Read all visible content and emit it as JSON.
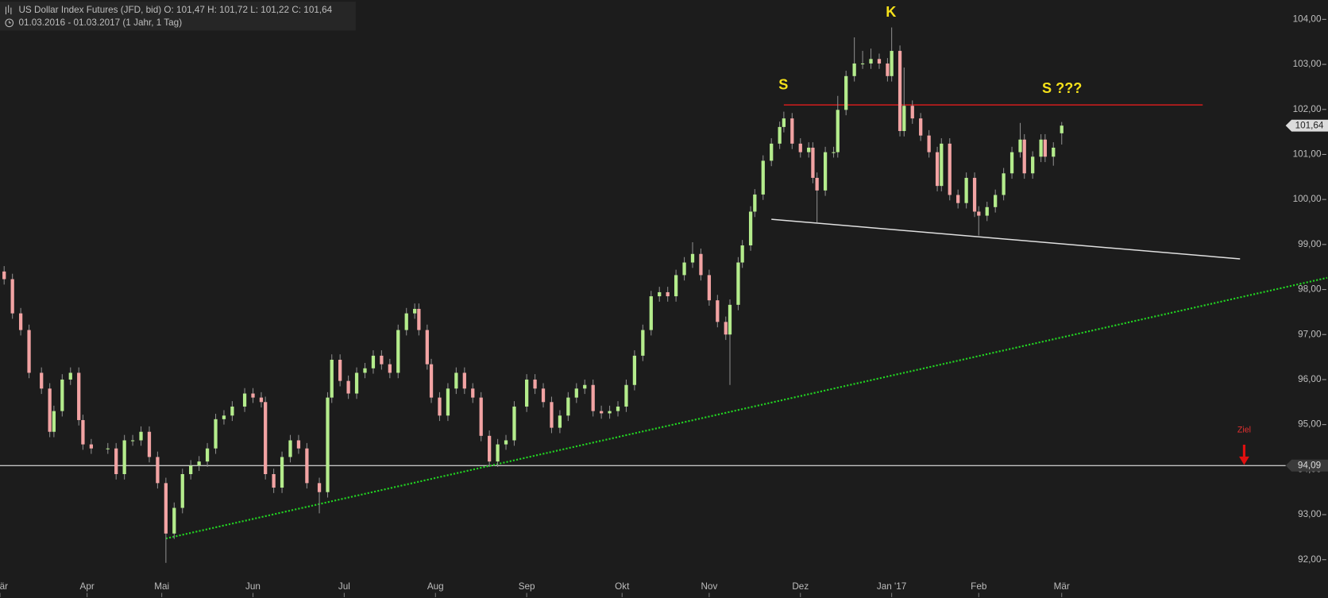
{
  "chart_data": {
    "type": "candlestick",
    "title": "US Dollar Index Futures (JFD, bid)  O: 101,47  H: 101,72  L: 101,22  C: 101,64",
    "subtitle": "01.03.2016 - 01.03.2017   (1 Jahr, 1 Tag)",
    "x": [
      1,
      3,
      5,
      7,
      10,
      12,
      13,
      15,
      17,
      19,
      20,
      22,
      26,
      28,
      30,
      32,
      34,
      36,
      38,
      40,
      42,
      44,
      46,
      48,
      50,
      52,
      54,
      56,
      59,
      61,
      63,
      64,
      66,
      68,
      70,
      72,
      74,
      77,
      79,
      80,
      82,
      84,
      86,
      88,
      90,
      92,
      94,
      96,
      98,
      100,
      101,
      103,
      104,
      106,
      108,
      110,
      112,
      114,
      116,
      118,
      120,
      122,
      124,
      127,
      129,
      131,
      133,
      135,
      137,
      139,
      141,
      143,
      145,
      147,
      149,
      151,
      153,
      155,
      157,
      159,
      161,
      163,
      165,
      167,
      169,
      171,
      173,
      175,
      176,
      178,
      179,
      181,
      182,
      184,
      186,
      188,
      189,
      191,
      193,
      195,
      196,
      197,
      199,
      201,
      202,
      204,
      206,
      208,
      210,
      212,
      214,
      215,
      217,
      218,
      220,
      222,
      224,
      226,
      227,
      229,
      231,
      233,
      235,
      236,
      238,
      240,
      242,
      244,
      246,
      247,
      249,
      251,
      252,
      254,
      256
    ],
    "open": [
      98.4,
      98.23,
      97.47,
      97.1,
      96.15,
      95.8,
      94.84,
      95.3,
      96.0,
      96.15,
      95.1,
      94.56,
      94.47,
      94.47,
      93.9,
      94.65,
      94.65,
      94.84,
      94.28,
      93.7,
      92.58,
      93.15,
      93.9,
      94.09,
      94.18,
      94.47,
      95.12,
      95.2,
      95.4,
      95.69,
      95.6,
      95.5,
      93.9,
      93.6,
      94.28,
      94.65,
      94.47,
      93.7,
      93.5,
      95.6,
      96.44,
      95.97,
      95.69,
      96.15,
      96.25,
      96.53,
      96.34,
      96.15,
      97.1,
      97.47,
      97.57,
      97.1,
      96.34,
      95.6,
      95.2,
      95.8,
      96.15,
      95.8,
      95.6,
      94.75,
      94.18,
      94.56,
      94.65,
      95.4,
      96.0,
      95.8,
      95.5,
      94.93,
      95.2,
      95.6,
      95.8,
      95.88,
      95.3,
      95.25,
      95.3,
      95.4,
      95.88,
      96.53,
      97.1,
      97.85,
      97.94,
      97.85,
      98.32,
      98.6,
      98.79,
      98.32,
      97.76,
      97.28,
      97.0,
      97.66,
      98.6,
      98.98,
      99.73,
      100.11,
      100.86,
      101.24,
      101.61,
      101.8,
      101.24,
      101.05,
      101.15,
      100.48,
      100.2,
      101.05,
      101.05,
      101.99,
      102.74,
      103.02,
      103.02,
      103.12,
      103.02,
      102.74,
      103.3,
      101.52,
      102.08,
      101.8,
      101.42,
      101.05,
      100.3,
      101.24,
      100.1,
      99.92,
      100.48,
      99.73,
      99.64,
      99.83,
      100.1,
      100.58,
      101.05,
      101.33,
      100.58,
      100.95,
      101.33,
      100.95,
      101.47
    ],
    "high": [
      98.52,
      98.35,
      97.59,
      97.22,
      96.27,
      95.92,
      95.42,
      96.12,
      96.27,
      96.27,
      95.22,
      94.68,
      94.59,
      94.59,
      94.77,
      94.77,
      94.96,
      94.96,
      94.4,
      93.82,
      93.27,
      94.02,
      94.21,
      94.3,
      94.59,
      95.24,
      95.32,
      95.52,
      95.81,
      95.81,
      95.72,
      95.62,
      94.02,
      94.4,
      94.77,
      94.77,
      94.59,
      93.82,
      95.72,
      96.56,
      96.56,
      96.09,
      96.27,
      96.37,
      96.65,
      96.65,
      96.46,
      97.22,
      97.59,
      97.69,
      97.69,
      97.22,
      96.46,
      95.72,
      95.92,
      96.27,
      96.27,
      95.92,
      95.72,
      94.87,
      94.68,
      94.77,
      95.52,
      96.12,
      96.12,
      95.92,
      95.62,
      95.32,
      95.72,
      95.92,
      96.0,
      96.0,
      95.42,
      95.42,
      95.52,
      96.0,
      96.65,
      97.22,
      97.97,
      98.06,
      98.06,
      98.44,
      98.72,
      99.05,
      98.91,
      98.44,
      97.88,
      97.4,
      97.78,
      98.72,
      99.1,
      99.85,
      100.23,
      100.98,
      101.36,
      101.73,
      101.95,
      101.92,
      101.36,
      101.27,
      101.27,
      100.6,
      101.17,
      101.17,
      102.3,
      102.86,
      103.6,
      103.3,
      103.35,
      103.24,
      103.14,
      103.82,
      103.42,
      102.93,
      102.2,
      101.92,
      101.54,
      101.17,
      101.36,
      101.36,
      100.22,
      100.6,
      100.6,
      99.85,
      99.95,
      100.22,
      100.7,
      101.17,
      101.7,
      101.45,
      101.07,
      101.45,
      101.45,
      101.27,
      101.72
    ],
    "low": [
      98.11,
      97.35,
      96.98,
      96.03,
      95.68,
      94.72,
      94.72,
      95.18,
      95.88,
      94.98,
      94.44,
      94.35,
      94.35,
      93.78,
      93.78,
      94.53,
      94.53,
      94.16,
      93.58,
      91.93,
      92.46,
      93.03,
      93.78,
      93.97,
      94.06,
      94.35,
      95.0,
      95.08,
      95.28,
      95.48,
      95.38,
      93.78,
      93.48,
      93.48,
      94.16,
      94.35,
      93.58,
      93.03,
      93.38,
      95.48,
      95.85,
      95.57,
      95.57,
      96.03,
      96.13,
      96.22,
      96.03,
      96.03,
      96.98,
      97.35,
      96.98,
      96.22,
      95.48,
      95.08,
      95.08,
      95.68,
      95.68,
      95.48,
      94.63,
      94.06,
      94.06,
      94.44,
      94.53,
      95.28,
      95.68,
      95.38,
      94.81,
      94.81,
      95.08,
      95.48,
      95.68,
      95.18,
      95.13,
      95.13,
      95.18,
      95.28,
      95.76,
      96.41,
      96.98,
      97.73,
      97.73,
      97.73,
      98.2,
      98.48,
      98.2,
      97.64,
      97.16,
      96.88,
      95.88,
      97.54,
      98.48,
      98.86,
      99.61,
      99.99,
      100.74,
      101.12,
      101.49,
      101.12,
      100.93,
      100.93,
      100.36,
      99.49,
      100.08,
      100.93,
      100.93,
      101.87,
      102.62,
      102.9,
      102.9,
      102.9,
      102.62,
      102.62,
      101.4,
      101.4,
      101.68,
      101.3,
      100.93,
      100.18,
      100.18,
      99.98,
      99.8,
      99.8,
      99.61,
      99.2,
      99.52,
      99.71,
      99.98,
      100.46,
      100.93,
      100.46,
      100.46,
      100.83,
      100.83,
      100.75,
      101.22
    ],
    "close": [
      98.23,
      97.47,
      97.1,
      96.15,
      95.8,
      94.84,
      95.3,
      96.0,
      96.15,
      95.1,
      94.56,
      94.47,
      94.47,
      93.9,
      94.65,
      94.65,
      94.84,
      94.28,
      93.7,
      92.58,
      93.15,
      93.9,
      94.09,
      94.18,
      94.47,
      95.12,
      95.2,
      95.4,
      95.69,
      95.6,
      95.5,
      93.9,
      93.6,
      94.28,
      94.65,
      94.47,
      93.7,
      93.5,
      95.6,
      96.44,
      95.97,
      95.69,
      96.15,
      96.25,
      96.53,
      96.34,
      96.15,
      97.1,
      97.47,
      97.57,
      97.1,
      96.34,
      95.6,
      95.2,
      95.8,
      96.15,
      95.8,
      95.6,
      94.75,
      94.18,
      94.56,
      94.65,
      95.4,
      96.0,
      95.8,
      95.5,
      94.93,
      95.2,
      95.6,
      95.8,
      95.88,
      95.3,
      95.25,
      95.3,
      95.4,
      95.88,
      96.53,
      97.1,
      97.85,
      97.94,
      97.85,
      98.32,
      98.6,
      98.79,
      98.32,
      97.76,
      97.28,
      97.0,
      97.66,
      98.6,
      98.98,
      99.73,
      100.11,
      100.86,
      101.24,
      101.61,
      101.8,
      101.24,
      101.05,
      101.15,
      100.48,
      100.2,
      101.05,
      101.05,
      101.99,
      102.74,
      103.02,
      103.02,
      103.12,
      103.02,
      102.74,
      103.3,
      101.52,
      102.08,
      101.8,
      101.42,
      101.05,
      100.3,
      101.24,
      100.1,
      99.92,
      100.48,
      99.73,
      99.64,
      99.83,
      100.1,
      100.58,
      101.05,
      101.33,
      100.58,
      100.95,
      101.33,
      100.95,
      101.15,
      101.64
    ],
    "up_color": "#b4ec8c",
    "down_color": "#f2a3a3",
    "last_price": {
      "value": 101.64,
      "label": "101,64"
    },
    "xlim": [
      0,
      310
    ],
    "xticks": [
      {
        "value": 0,
        "label": "Mär"
      },
      {
        "value": 21,
        "label": "Apr"
      },
      {
        "value": 39,
        "label": "Mai"
      },
      {
        "value": 61,
        "label": "Jun"
      },
      {
        "value": 83,
        "label": "Jul"
      },
      {
        "value": 105,
        "label": "Aug"
      },
      {
        "value": 127,
        "label": "Sep"
      },
      {
        "value": 150,
        "label": "Okt"
      },
      {
        "value": 171,
        "label": "Nov"
      },
      {
        "value": 193,
        "label": "Dez"
      },
      {
        "value": 215,
        "label": "Jan '17"
      },
      {
        "value": 236,
        "label": "Feb"
      },
      {
        "value": 256,
        "label": "Mär"
      }
    ],
    "ylim": [
      91.6,
      104.43
    ],
    "yticks": [
      {
        "value": 92,
        "label": "92,00"
      },
      {
        "value": 93,
        "label": "93,00"
      },
      {
        "value": 94,
        "label": "94,00"
      },
      {
        "value": 95,
        "label": "95,00"
      },
      {
        "value": 96,
        "label": "96,00"
      },
      {
        "value": 97,
        "label": "97,00"
      },
      {
        "value": 98,
        "label": "98,00"
      },
      {
        "value": 99,
        "label": "99,00"
      },
      {
        "value": 100,
        "label": "100,00"
      },
      {
        "value": 101,
        "label": "101,00"
      },
      {
        "value": 102,
        "label": "102,00"
      },
      {
        "value": 103,
        "label": "103,00"
      },
      {
        "value": 104,
        "label": "104,00"
      }
    ],
    "hline": {
      "value": 94.09,
      "label": "94,09",
      "color": "#ffffff"
    },
    "trendlines": [
      {
        "x": [
          189,
          290
        ],
        "y": [
          102.1,
          102.1
        ],
        "color": "#d11d1d",
        "dotted": false
      },
      {
        "x": [
          186,
          299
        ],
        "y": [
          99.56,
          98.68
        ],
        "color": "#e0e0e0",
        "dotted": false
      },
      {
        "x": [
          40,
          320
        ],
        "y": [
          92.47,
          98.26
        ],
        "color": "#22d422",
        "dotted": true
      }
    ],
    "annotations": [
      "K",
      "S",
      "S ???",
      "Ziel"
    ]
  }
}
